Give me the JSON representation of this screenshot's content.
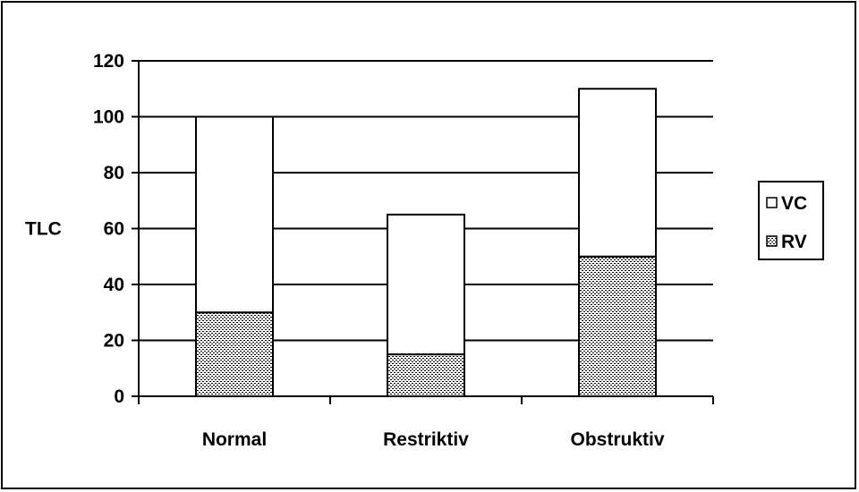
{
  "chart_data": {
    "type": "bar",
    "stacked": true,
    "categories": [
      "Normal",
      "Restriktiv",
      "Obstruktiv"
    ],
    "series": [
      {
        "name": "RV",
        "values": [
          30,
          15,
          50
        ],
        "pattern": "dotted"
      },
      {
        "name": "VC",
        "values": [
          70,
          50,
          60
        ],
        "pattern": "white"
      }
    ],
    "ylabel": "TLC",
    "ylim": [
      0,
      120
    ],
    "yticks": [
      0,
      20,
      40,
      60,
      80,
      100,
      120
    ],
    "grid": true,
    "legend": "right",
    "legend_order": [
      "VC",
      "RV"
    ]
  },
  "colors": {
    "line": "#000000",
    "fill": "#ffffff"
  }
}
